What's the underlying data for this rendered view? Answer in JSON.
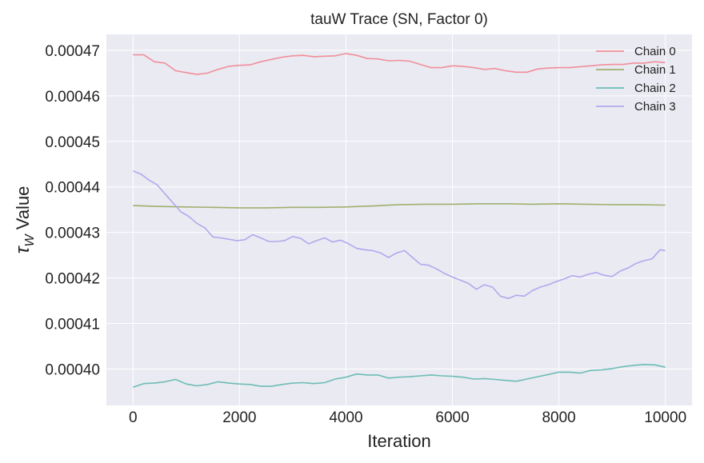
{
  "chart_data": {
    "type": "line",
    "title": "tauW Trace (SN, Factor 0)",
    "xlabel": "Iteration",
    "ylabel_symbol": "τ",
    "ylabel_subscript": "W",
    "ylabel_suffix": " Value",
    "xlim": [
      -500,
      10500
    ],
    "ylim": [
      0.000392,
      0.0004735
    ],
    "x_ticks": [
      0,
      2000,
      4000,
      6000,
      8000,
      10000
    ],
    "x_tick_labels": [
      "0",
      "2000",
      "4000",
      "6000",
      "8000",
      "10000"
    ],
    "y_ticks": [
      0.0004,
      0.00041,
      0.00042,
      0.00043,
      0.00044,
      0.00045,
      0.00046,
      0.00047
    ],
    "y_tick_labels": [
      "0.00040",
      "0.00041",
      "0.00042",
      "0.00043",
      "0.00044",
      "0.00045",
      "0.00046",
      "0.00047"
    ],
    "grid": true,
    "legend_position": "top-right",
    "background": "#eaeaf2",
    "series": [
      {
        "name": "Chain 0",
        "color": "#f08f9b",
        "x": [
          0,
          200,
          400,
          600,
          800,
          1000,
          1200,
          1400,
          1600,
          1800,
          2000,
          2200,
          2400,
          2600,
          2800,
          3000,
          3200,
          3400,
          3600,
          3800,
          4000,
          4200,
          4400,
          4600,
          4800,
          5000,
          5200,
          5400,
          5600,
          5800,
          6000,
          6200,
          6400,
          6600,
          6800,
          7000,
          7200,
          7400,
          7600,
          7800,
          8000,
          8200,
          8400,
          8600,
          8800,
          9000,
          9200,
          9400,
          9600,
          9800,
          10000
        ],
        "y": [
          0.000469,
          0.000469,
          0.0004675,
          0.0004672,
          0.0004655,
          0.0004651,
          0.0004647,
          0.000465,
          0.0004658,
          0.0004665,
          0.0004667,
          0.0004668,
          0.0004675,
          0.000468,
          0.0004685,
          0.0004688,
          0.0004689,
          0.0004686,
          0.0004687,
          0.0004688,
          0.0004693,
          0.0004689,
          0.0004682,
          0.0004681,
          0.0004677,
          0.0004678,
          0.0004676,
          0.0004669,
          0.0004662,
          0.0004662,
          0.0004666,
          0.0004665,
          0.0004662,
          0.0004658,
          0.000466,
          0.0004655,
          0.0004652,
          0.0004652,
          0.0004659,
          0.0004661,
          0.0004662,
          0.0004662,
          0.0004664,
          0.0004666,
          0.0004668,
          0.0004669,
          0.0004669,
          0.0004672,
          0.0004672,
          0.0004675,
          0.0004673
        ]
      },
      {
        "name": "Chain 1",
        "color": "#9fb06e",
        "x": [
          0,
          500,
          1000,
          1500,
          2000,
          2500,
          3000,
          3500,
          4000,
          4500,
          5000,
          5500,
          6000,
          6500,
          7000,
          7500,
          8000,
          8500,
          9000,
          9500,
          10000
        ],
        "y": [
          0.0004359,
          0.0004357,
          0.0004356,
          0.0004355,
          0.0004354,
          0.0004354,
          0.0004355,
          0.0004355,
          0.0004356,
          0.0004358,
          0.0004361,
          0.0004362,
          0.0004362,
          0.0004363,
          0.0004363,
          0.0004362,
          0.0004363,
          0.0004362,
          0.0004361,
          0.0004361,
          0.000436
        ]
      },
      {
        "name": "Chain 2",
        "color": "#6cbdb5",
        "x": [
          0,
          200,
          400,
          600,
          800,
          1000,
          1200,
          1400,
          1600,
          1800,
          2000,
          2200,
          2400,
          2600,
          2800,
          3000,
          3200,
          3400,
          3600,
          3800,
          4000,
          4200,
          4400,
          4600,
          4800,
          5000,
          5200,
          5400,
          5600,
          5800,
          6000,
          6200,
          6400,
          6600,
          6800,
          7000,
          7200,
          7400,
          7600,
          7800,
          8000,
          8200,
          8400,
          8600,
          8800,
          9000,
          9200,
          9400,
          9600,
          9800,
          10000
        ],
        "y": [
          0.000396,
          0.0003968,
          0.0003969,
          0.0003972,
          0.0003977,
          0.0003967,
          0.0003963,
          0.0003966,
          0.0003972,
          0.0003969,
          0.0003967,
          0.0003966,
          0.0003962,
          0.0003962,
          0.0003966,
          0.0003969,
          0.000397,
          0.0003968,
          0.000397,
          0.0003978,
          0.0003982,
          0.0003989,
          0.0003987,
          0.0003987,
          0.000398,
          0.0003982,
          0.0003983,
          0.0003985,
          0.0003987,
          0.0003985,
          0.0003984,
          0.0003982,
          0.0003978,
          0.0003979,
          0.0003977,
          0.0003975,
          0.0003973,
          0.0003978,
          0.0003983,
          0.0003988,
          0.0003993,
          0.0003993,
          0.0003991,
          0.0003997,
          0.0003998,
          0.0004001,
          0.0004005,
          0.0004008,
          0.000401,
          0.0004009,
          0.0004004
        ]
      },
      {
        "name": "Chain 3",
        "color": "#b4a7ed",
        "x": [
          0,
          150,
          300,
          450,
          600,
          750,
          900,
          1050,
          1200,
          1350,
          1500,
          1650,
          1800,
          1950,
          2100,
          2250,
          2400,
          2550,
          2700,
          2850,
          3000,
          3150,
          3300,
          3450,
          3600,
          3750,
          3900,
          4050,
          4200,
          4350,
          4500,
          4650,
          4800,
          4950,
          5100,
          5250,
          5400,
          5550,
          5700,
          5850,
          6000,
          6150,
          6300,
          6450,
          6600,
          6750,
          6900,
          7050,
          7200,
          7350,
          7500,
          7650,
          7800,
          7950,
          8100,
          8250,
          8400,
          8550,
          8700,
          8850,
          9000,
          9150,
          9300,
          9450,
          9600,
          9750,
          9900,
          10000
        ],
        "y": [
          0.0004435,
          0.0004428,
          0.0004415,
          0.0004405,
          0.0004385,
          0.0004365,
          0.0004345,
          0.0004335,
          0.000432,
          0.000431,
          0.000429,
          0.0004288,
          0.0004285,
          0.0004282,
          0.0004284,
          0.0004295,
          0.0004288,
          0.000428,
          0.000428,
          0.0004282,
          0.0004291,
          0.0004287,
          0.0004275,
          0.0004282,
          0.0004288,
          0.0004279,
          0.0004283,
          0.0004275,
          0.0004265,
          0.0004262,
          0.000426,
          0.0004255,
          0.0004245,
          0.0004255,
          0.000426,
          0.0004245,
          0.000423,
          0.0004228,
          0.000422,
          0.000421,
          0.0004202,
          0.0004195,
          0.0004188,
          0.0004175,
          0.0004185,
          0.000418,
          0.000416,
          0.0004155,
          0.0004162,
          0.000416,
          0.0004172,
          0.000418,
          0.0004185,
          0.0004192,
          0.0004198,
          0.0004205,
          0.0004202,
          0.0004208,
          0.0004212,
          0.0004206,
          0.0004203,
          0.0004215,
          0.0004222,
          0.0004232,
          0.0004238,
          0.0004242,
          0.0004262,
          0.000426
        ]
      }
    ]
  }
}
